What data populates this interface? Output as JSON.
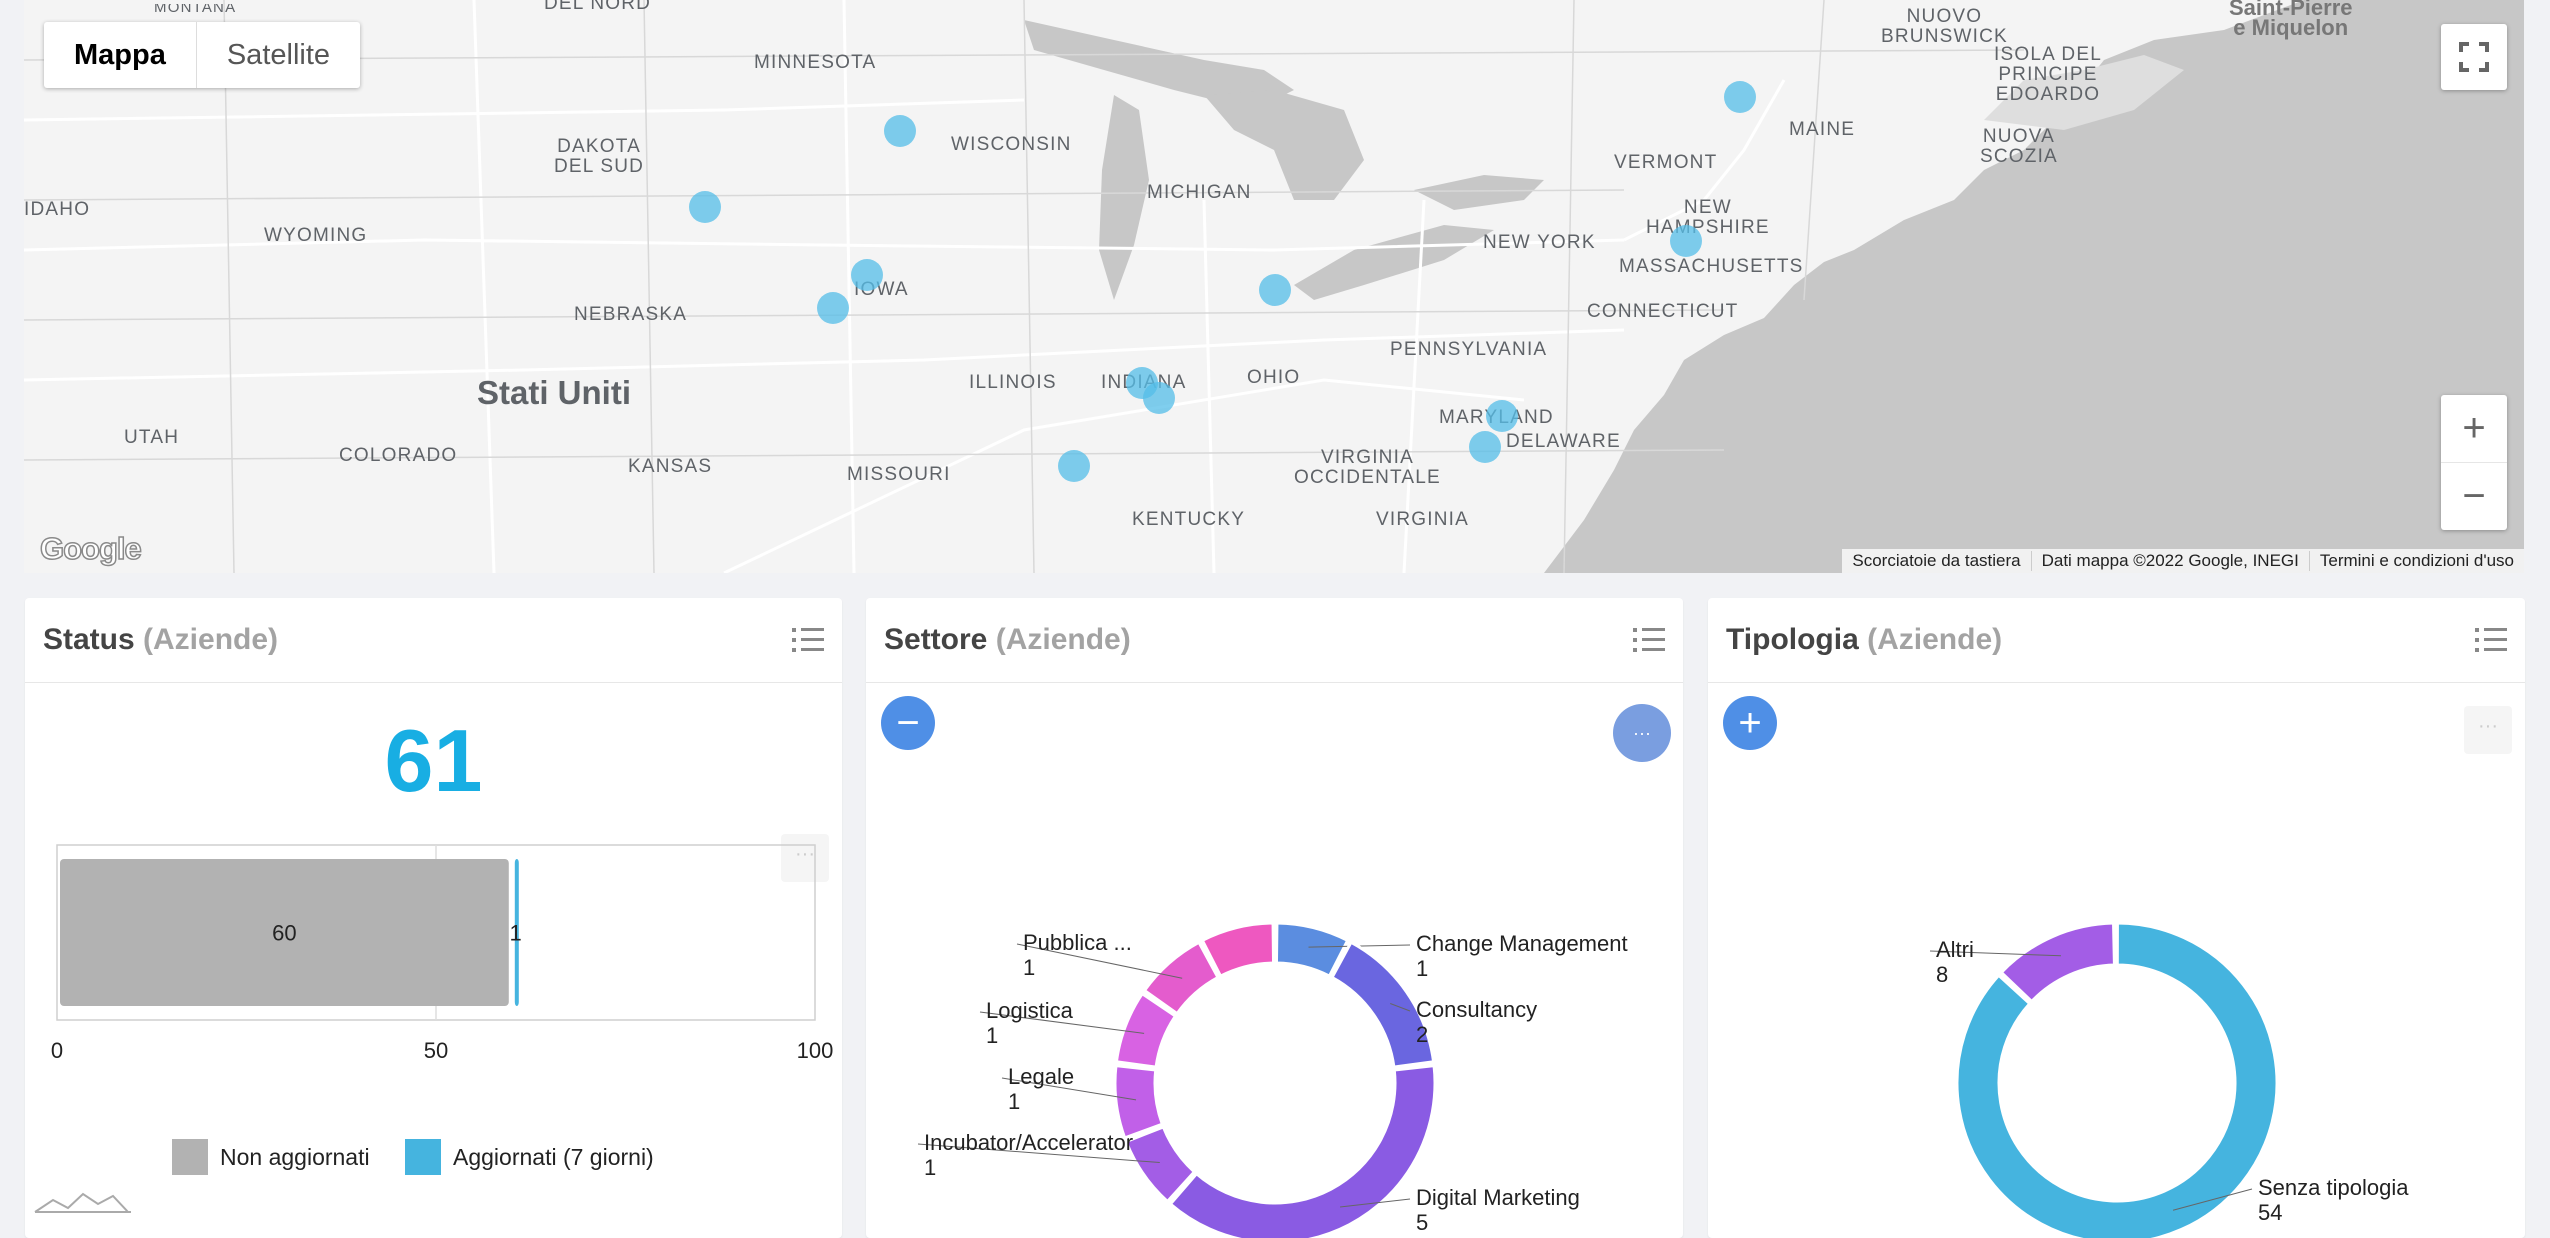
{
  "map": {
    "type_buttons": [
      "Mappa",
      "Satellite"
    ],
    "labels": {
      "del_nord": "DEL NORD",
      "montana": "MONTANA",
      "minnesota": "MINNESOTA",
      "dakota_sud": "DAKOTA\nDEL SUD",
      "wisconsin": "WISCONSIN",
      "michigan": "MICHIGAN",
      "idaho": "IDAHO",
      "wyoming": "WYOMING",
      "nebraska": "NEBRASKA",
      "iowa": "IOWA",
      "stati_uniti": "Stati Uniti",
      "illinois": "ILLINOIS",
      "indiana": "INDIANA",
      "ohio": "OHIO",
      "utah": "UTAH",
      "colorado": "COLORADO",
      "kansas": "KANSAS",
      "missouri": "MISSOURI",
      "kentucky": "KENTUCKY",
      "virginia_occ": "VIRGINIA\nOCCIDENTALE",
      "virginia": "VIRGINIA",
      "pennsylvania": "PENNSYLVANIA",
      "new_york": "NEW YORK",
      "maryland": "MARYLAND",
      "delaware": "DELAWARE",
      "connecticut": "CONNECTICUT",
      "massachusetts": "MASSACHUSETTS",
      "new_hampshire": "NEW\nHAMPSHIRE",
      "vermont": "VERMONT",
      "maine": "MAINE",
      "nuovo_brunswick": "NUOVO\nBRUNSWICK",
      "isola_principe": "ISOLA DEL\nPRINCIPE\nEDOARDO",
      "nuova_scozia": "NUOVA\nSCOZIA",
      "saint_pierre": "Saint-Pierre\ne Miquelon"
    },
    "attribution": [
      "Scorciatoie da tastiera",
      "Dati mappa ©2022 Google, INEGI",
      "Termini e condizioni d'uso"
    ],
    "logo": "Google",
    "zoom_in": "+",
    "zoom_out": "−"
  },
  "cards": {
    "status": {
      "title": "Status",
      "subtitle": "(Aziende)",
      "total": "61",
      "menu_dots": "···"
    },
    "settore": {
      "title": "Settore",
      "subtitle": "(Aziende)",
      "collapse_icon": "−",
      "menu_dots": "···"
    },
    "tipologia": {
      "title": "Tipologia",
      "subtitle": "(Aziende)",
      "expand_icon": "+",
      "menu_dots": "···"
    }
  },
  "colors": {
    "blue": "#45b4df",
    "gray": "#b2b2b2",
    "royal": "#5b8de0",
    "indigo": "#6a66e0",
    "violet": "#8a5be3",
    "purple": "#a35de6",
    "orchid": "#d260e6",
    "magenta": "#e45ccd",
    "pink": "#ee58c0"
  },
  "chart_data": [
    {
      "type": "bar",
      "orientation": "horizontal",
      "stacked": true,
      "series": [
        {
          "name": "Non aggiornati",
          "values": [
            60
          ],
          "color": "#b2b2b2"
        },
        {
          "name": "Aggiornati (7 giorni)",
          "values": [
            1
          ],
          "color": "#45b4df"
        }
      ],
      "xlim": [
        0,
        100
      ],
      "xticks": [
        "0",
        "50",
        "100"
      ],
      "legend_position": "bottom"
    },
    {
      "type": "pie",
      "donut": true,
      "slices": [
        {
          "label": "Change Management",
          "value": 1,
          "color": "#5b8de0"
        },
        {
          "label": "Consultancy",
          "value": 2,
          "color": "#6a66e0"
        },
        {
          "label": "Digital Marketing",
          "value": 5,
          "color": "#8a5be3"
        },
        {
          "label": "Incubator/Accelerator",
          "value": 1,
          "color": "#a35de6"
        },
        {
          "label": "Legale",
          "value": 1,
          "color": "#c160e8"
        },
        {
          "label": "Logistica",
          "value": 1,
          "color": "#d862e3"
        },
        {
          "label": "Pubblica ...",
          "value": 1,
          "color": "#e45ccd"
        },
        {
          "label": "",
          "value": 1,
          "color": "#ee58c0"
        }
      ]
    },
    {
      "type": "pie",
      "donut": true,
      "slices": [
        {
          "label": "Altri",
          "value": 8,
          "color": "#a35de6"
        },
        {
          "label": "Senza tipologia",
          "value": 54,
          "color": "#45b4df"
        }
      ]
    }
  ]
}
